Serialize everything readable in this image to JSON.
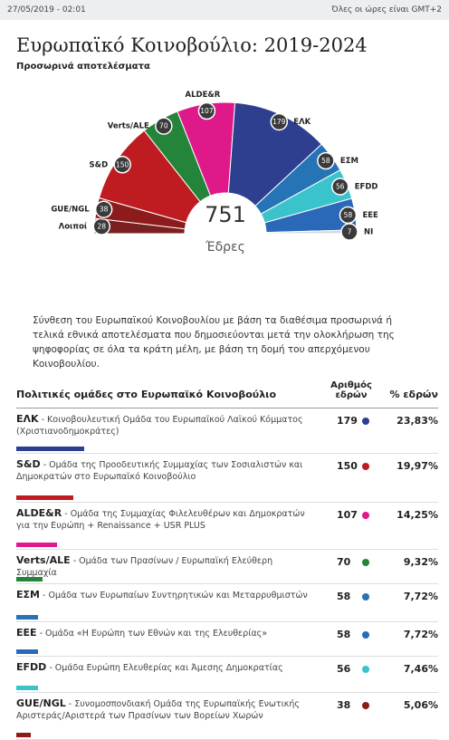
{
  "header": {
    "datetime": "27/05/2019 - 02:01",
    "timezone": "Όλες οι ώρες είναι GMT+2",
    "title": "Ευρωπαϊκό Κοινοβούλιο: 2019-2024",
    "subtitle": "Προσωρινά αποτελέσματα"
  },
  "chart_data": {
    "type": "hemicycle",
    "total": 751,
    "center_label": "Έδρες",
    "categories": [
      "Λοιποί",
      "GUE/NGL",
      "S&D",
      "Verts/ALE",
      "ALDE&R",
      "ΕΛΚ",
      "ΕΣΜ",
      "EFDD",
      "ΕΕΕ",
      "NI"
    ],
    "values": [
      28,
      38,
      150,
      70,
      107,
      179,
      58,
      56,
      58,
      7
    ],
    "colors": [
      "#7a2020",
      "#8e1b1b",
      "#bf1c22",
      "#23843a",
      "#e0198a",
      "#2d3f8e",
      "#2673b5",
      "#3bc3cb",
      "#2a69b8",
      "#d5dbe3"
    ]
  },
  "description": "Σύνθεση του Ευρωπαϊκού Κοινοβουλίου με βάση τα διαθέσιμα προσωρινά ή τελικά εθνικά αποτελέσματα που δημοσιεύονται μετά την ολοκλήρωση της ψηφοφορίας σε όλα τα κράτη μέλη, με βάση τη δομή του απερχόμενου Κοινοβουλίου.",
  "table": {
    "headers": [
      "Πολιτικές ομάδες στο Ευρωπαϊκό Κοινοβούλιο",
      "Αριθμός εδρών",
      "% εδρών"
    ],
    "rows": [
      {
        "name": "ΕΛΚ",
        "desc": "- Κοινοβουλευτική Ομάδα του Ευρωπαϊκού Λαϊκού Κόμματος (Χριστιανοδημοκράτες)",
        "seats": 179,
        "pct": "23,83%",
        "color": "#2d3f8e"
      },
      {
        "name": "S&D",
        "desc": "- Ομάδα της Προοδευτικής Συμμαχίας των Σοσιαλιστών και Δημοκρατών στο Ευρωπαϊκό Κοινοβούλιο",
        "seats": 150,
        "pct": "19,97%",
        "color": "#bf1c22"
      },
      {
        "name": "ALDE&R",
        "desc": "- Ομάδα της Συμμαχίας Φιλελευθέρων και Δημοκρατών για την Ευρώπη + Renaissance + USR PLUS",
        "seats": 107,
        "pct": "14,25%",
        "color": "#e0198a"
      },
      {
        "name": "Verts/ALE",
        "desc": "- Ομάδα των Πρασίνων / Ευρωπαϊκή Ελεύθερη Συμμαχία",
        "seats": 70,
        "pct": "9,32%",
        "color": "#23843a"
      },
      {
        "name": "ΕΣΜ",
        "desc": "- Ομάδα των Ευρωπαίων Συντηρητικών και Μεταρρυθμιστών",
        "seats": 58,
        "pct": "7,72%",
        "color": "#2673b5"
      },
      {
        "name": "ΕΕΕ",
        "desc": "- Ομάδα «Η Ευρώπη των Εθνών και της Ελευθερίας»",
        "seats": 58,
        "pct": "7,72%",
        "color": "#2a69b8"
      },
      {
        "name": "EFDD",
        "desc": "- Ομάδα Ευρώπη Ελευθερίας και Άμεσης Δημοκρατίας",
        "seats": 56,
        "pct": "7,46%",
        "color": "#3bc3cb"
      },
      {
        "name": "GUE/NGL",
        "desc": "- Συνομοσπονδιακή Ομάδα της Ευρωπαϊκής Ενωτικής Αριστεράς/Αριστερά των Πρασίνων των Βορείων Χωρών",
        "seats": 38,
        "pct": "5,06%",
        "color": "#8e1b1b"
      }
    ]
  }
}
